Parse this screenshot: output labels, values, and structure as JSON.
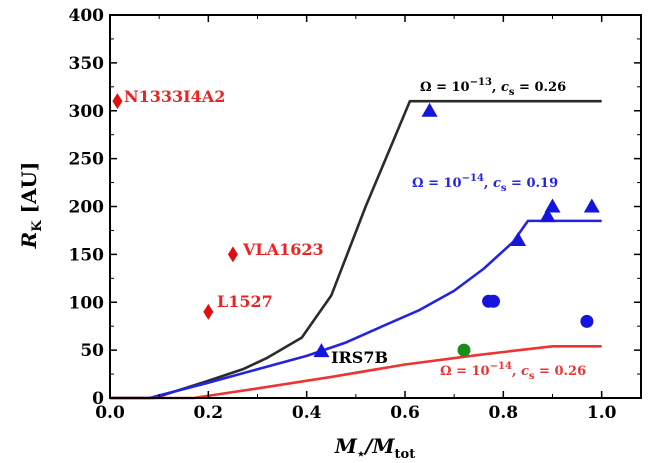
{
  "chart_data": {
    "type": "line",
    "title": "",
    "xlabel": "M⋆/Mtot",
    "ylabel": "RK [AU]",
    "xlim": [
      0.0,
      1.08
    ],
    "ylim": [
      0,
      400
    ],
    "xticks": [
      "0.0",
      "0.2",
      "0.4",
      "0.6",
      "0.8",
      "1.0"
    ],
    "yticks": [
      "0",
      "50",
      "100",
      "150",
      "200",
      "250",
      "300",
      "350",
      "400"
    ],
    "grid": false,
    "series": [
      {
        "name": "Ω = 10−13, cs = 0.26",
        "color": "#2b2b2b",
        "x": [
          0.0,
          0.09,
          0.2,
          0.27,
          0.32,
          0.39,
          0.45,
          0.52,
          0.61,
          0.7,
          1.0
        ],
        "y": [
          0,
          0,
          18,
          30,
          42,
          63,
          107,
          200,
          310,
          310,
          310
        ]
      },
      {
        "name": "Ω = 10−14, cs = 0.19",
        "color": "#2424e0",
        "x": [
          0.0,
          0.08,
          0.2,
          0.3,
          0.4,
          0.48,
          0.55,
          0.63,
          0.7,
          0.76,
          0.82,
          0.85,
          0.9,
          1.0
        ],
        "y": [
          0,
          0,
          16,
          30,
          44,
          58,
          74,
          92,
          112,
          135,
          163,
          185,
          185,
          185
        ]
      },
      {
        "name": "Ω = 10−14, cs = 0.26",
        "color": "#ee3333",
        "x": [
          0.0,
          0.17,
          0.3,
          0.45,
          0.6,
          0.75,
          0.9,
          1.0
        ],
        "y": [
          0,
          0,
          10,
          22,
          35,
          45,
          54,
          54
        ]
      }
    ],
    "annotations": [
      {
        "text": "Ω = 10−13, cs = 0.26",
        "color": "#000000"
      },
      {
        "text": "Ω = 10−14, cs = 0.19",
        "color": "#2424e0"
      },
      {
        "text": "Ω = 10−14, cs = 0.26",
        "color": "#ee3333"
      }
    ],
    "markers": {
      "triangles": {
        "color": "#1515dd",
        "x": [
          0.43,
          0.65,
          0.83,
          0.89,
          0.9,
          0.98
        ],
        "y": [
          49,
          300,
          165,
          190,
          200,
          200
        ]
      },
      "circles": {
        "color": "#1515dd",
        "x": [
          0.77,
          0.78,
          0.97
        ],
        "y": [
          101,
          101,
          80
        ]
      },
      "green_circle": {
        "color": "#1a8c1a",
        "x": 0.72,
        "y": 50
      },
      "diamonds": {
        "color": "#dd1111",
        "x": [
          0.015,
          0.25,
          0.2
        ],
        "y": [
          310,
          150,
          90
        ]
      }
    },
    "point_labels": [
      {
        "text": "N1333I4A2",
        "color": "#ee2222"
      },
      {
        "text": "VLA1623",
        "color": "#ee2222"
      },
      {
        "text": "L1527",
        "color": "#ee2222"
      },
      {
        "text": "IRS7B",
        "color": "#000000"
      }
    ]
  }
}
